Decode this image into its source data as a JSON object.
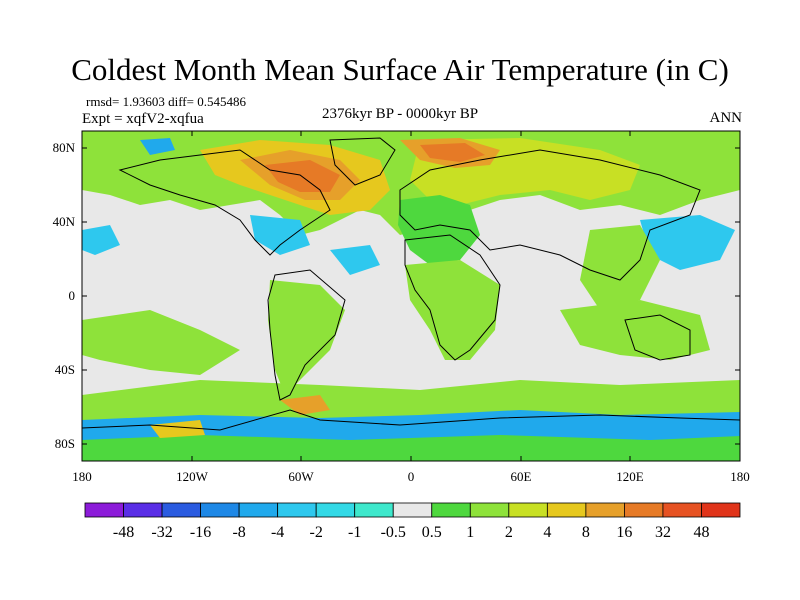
{
  "title": "Coldest Month Mean Surface Air Temperature (in C)",
  "stats_text": "rmsd= 1.93603 diff= 0.545486",
  "experiment": "Expt = xqfV2-xqfua",
  "period": "2376kyr BP - 0000kyr BP",
  "season": "ANN",
  "lat_ticks": [
    "80N",
    "40N",
    "0",
    "40S",
    "80S"
  ],
  "lon_ticks": [
    "180",
    "120W",
    "60W",
    "0",
    "60E",
    "120E",
    "180"
  ],
  "colorbar": {
    "labels": [
      "-48",
      "-32",
      "-16",
      "-8",
      "-4",
      "-2",
      "-1",
      "-0.5",
      "0.5",
      "1",
      "2",
      "4",
      "8",
      "16",
      "32",
      "48"
    ],
    "colors": [
      "#8c1bd9",
      "#5a2ee6",
      "#2a5be0",
      "#1e88e6",
      "#20a9ec",
      "#2ec8ee",
      "#33d9e6",
      "#3ee8cc",
      "#e8e8e8",
      "#4ed83e",
      "#8ee23a",
      "#c8e024",
      "#e6c81e",
      "#e6a02a",
      "#e67a26",
      "#e65222",
      "#e0341a"
    ]
  },
  "colors": {
    "land_outline": "#000000",
    "no_change": "#e8e8e8"
  }
}
